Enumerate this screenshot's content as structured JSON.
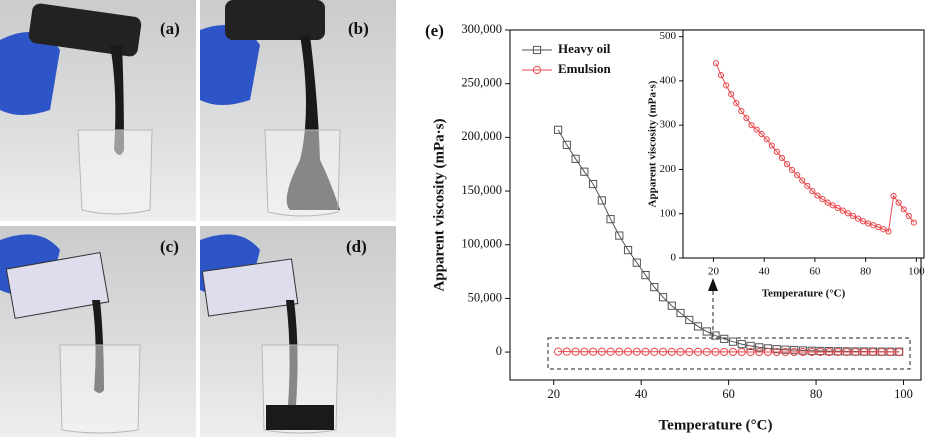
{
  "photos": {
    "labels": [
      "(a)",
      "(b)",
      "(c)",
      "(d)"
    ]
  },
  "chart_data": [
    {
      "type": "line",
      "panel_label": "(e)",
      "x_label": "Temperature (°C)",
      "y_label": "Apparent viscosity (mPa·s)",
      "x": [
        21,
        23,
        25,
        27,
        29,
        31,
        33,
        35,
        37,
        39,
        41,
        43,
        45,
        47,
        49,
        51,
        53,
        55,
        57,
        59,
        61,
        63,
        65,
        67,
        69,
        71,
        73,
        75,
        77,
        79,
        81,
        83,
        85,
        87,
        89,
        91,
        93,
        95,
        97,
        99
      ],
      "series": [
        {
          "name": "Heavy oil",
          "color": "#555555",
          "marker": "square",
          "values": [
            207000,
            193000,
            180000,
            168000,
            156500,
            141300,
            123800,
            108500,
            95000,
            83300,
            71700,
            60500,
            51100,
            43200,
            36400,
            29900,
            23900,
            19200,
            15400,
            12300,
            9700,
            7450,
            5750,
            4430,
            3410,
            2710,
            2220,
            1820,
            1490,
            1220,
            1020,
            890,
            770,
            670,
            580,
            520,
            470,
            425,
            385,
            350
          ]
        },
        {
          "name": "Emulsion",
          "color": "#e8474c",
          "marker": "circle",
          "values": [
            440,
            413,
            390,
            370,
            350,
            332,
            316,
            300,
            290,
            280,
            268,
            254,
            240,
            226,
            212,
            199,
            187,
            175,
            163,
            151,
            141,
            133,
            125,
            119,
            113,
            107,
            101,
            95,
            89,
            83,
            78,
            74,
            70,
            65,
            60,
            140,
            125,
            110,
            95,
            80
          ]
        }
      ],
      "xlim": [
        10,
        104
      ],
      "xticks": [
        20,
        40,
        60,
        80,
        100
      ],
      "ylim": [
        -26000,
        300000
      ],
      "yticks": [
        0,
        {
          "value": 50000,
          "label": "50,000"
        },
        {
          "value": 100000,
          "label": "100,000"
        },
        {
          "value": 150000,
          "label": "150,000"
        },
        {
          "value": 200000,
          "label": "200,000"
        },
        {
          "value": 250000,
          "label": "250,000"
        },
        {
          "value": 300000,
          "label": "300,000"
        }
      ],
      "legend": "upper left",
      "grid": false
    },
    {
      "type": "line",
      "x_label": "Temperature (°C)",
      "y_label": "Apparent viscosity (mPa·s)",
      "x": [
        21,
        23,
        25,
        27,
        29,
        31,
        33,
        35,
        37,
        39,
        41,
        43,
        45,
        47,
        49,
        51,
        53,
        55,
        57,
        59,
        61,
        63,
        65,
        67,
        69,
        71,
        73,
        75,
        77,
        79,
        81,
        83,
        85,
        87,
        89,
        91,
        93,
        95,
        97,
        99
      ],
      "series": [
        {
          "name": "Emulsion",
          "color": "#e8474c",
          "marker": "circle",
          "values": [
            440,
            413,
            390,
            370,
            350,
            332,
            316,
            300,
            290,
            280,
            268,
            254,
            240,
            226,
            212,
            199,
            187,
            175,
            163,
            151,
            141,
            133,
            125,
            119,
            113,
            107,
            101,
            95,
            89,
            83,
            78,
            74,
            70,
            65,
            60,
            140,
            125,
            110,
            95,
            80
          ]
        }
      ],
      "xlim": [
        8,
        103
      ],
      "xticks": [
        20,
        40,
        60,
        80,
        100
      ],
      "ylim": [
        0,
        515
      ],
      "yticks": [
        0,
        100,
        200,
        300,
        400,
        500
      ],
      "grid": false
    }
  ]
}
